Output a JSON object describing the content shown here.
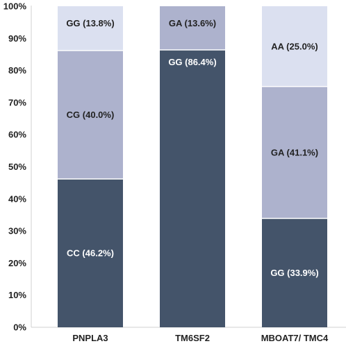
{
  "chart_data": {
    "type": "bar",
    "stacked": true,
    "percent": true,
    "categories": [
      "PNPLA3",
      "TM6SF2",
      "MBOAT7/ TMC4"
    ],
    "yticks": [
      "0%",
      "10%",
      "20%",
      "30%",
      "40%",
      "50%",
      "60%",
      "70%",
      "80%",
      "90%",
      "100%"
    ],
    "ylim": [
      0,
      100
    ],
    "grid": false,
    "bars": [
      {
        "category": "PNPLA3",
        "segments": [
          {
            "label": "CC (46.2%)",
            "value": 46.2,
            "color": "#44546a",
            "text_color": "#ffffff"
          },
          {
            "label": "CG (40.0%)",
            "value": 40.0,
            "color": "#adb2cd",
            "text_color": "#222222"
          },
          {
            "label": "GG (13.8%)",
            "value": 13.8,
            "color": "#dbe0f0",
            "text_color": "#222222"
          }
        ]
      },
      {
        "category": "TM6SF2",
        "segments": [
          {
            "label": "GG (86.4%)",
            "value": 86.4,
            "color": "#44546a",
            "text_color": "#ffffff"
          },
          {
            "label": "GA (13.6%)",
            "value": 13.6,
            "color": "#adb2cd",
            "text_color": "#222222"
          }
        ]
      },
      {
        "category": "MBOAT7/ TMC4",
        "segments": [
          {
            "label": "GG (33.9%)",
            "value": 33.9,
            "color": "#44546a",
            "text_color": "#ffffff"
          },
          {
            "label": "GA (41.1%)",
            "value": 41.1,
            "color": "#adb2cd",
            "text_color": "#222222"
          },
          {
            "label": "AA (25.0%)",
            "value": 25.0,
            "color": "#dbe0f0",
            "text_color": "#222222"
          }
        ]
      }
    ]
  }
}
